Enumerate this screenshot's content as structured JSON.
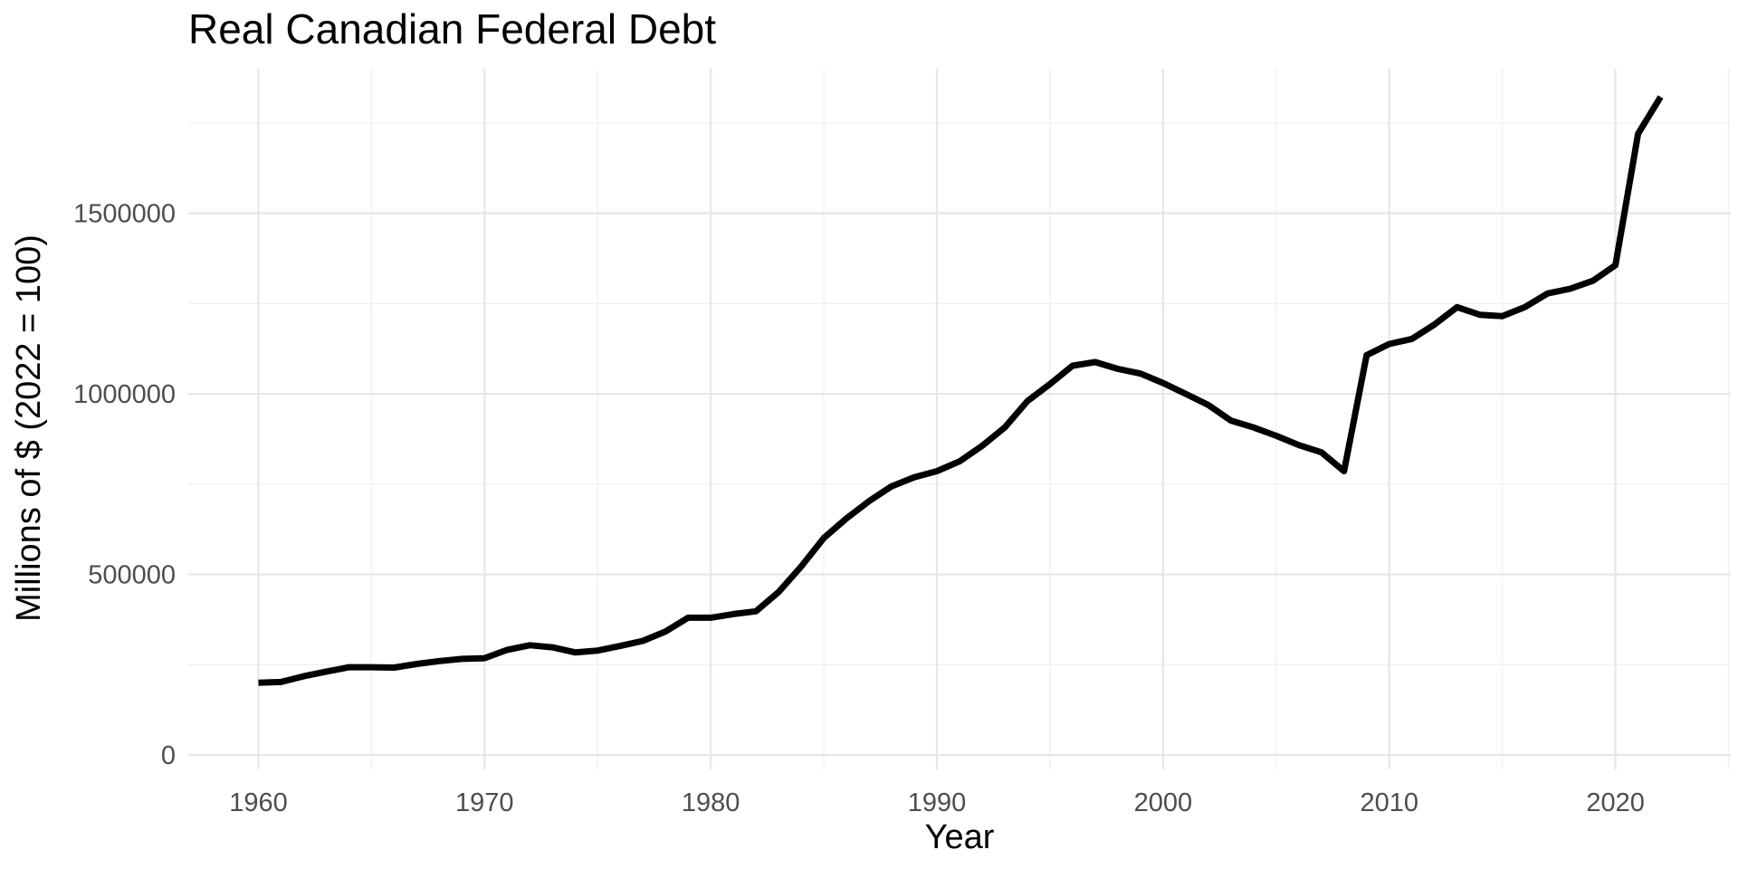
{
  "chart_data": {
    "type": "line",
    "title": "Real Canadian Federal Debt",
    "xlabel": "Year",
    "ylabel": "Millions of $ (2022 = 100)",
    "xlim": [
      1956.9,
      2025.1
    ],
    "ylim": [
      -40000,
      1900000
    ],
    "x_ticks": [
      1960,
      1970,
      1980,
      1990,
      2000,
      2010,
      2020
    ],
    "y_ticks": [
      0,
      500000,
      1000000,
      1500000
    ],
    "x_tick_labels": [
      "1960",
      "1970",
      "1980",
      "1990",
      "2000",
      "2010",
      "2020"
    ],
    "y_tick_labels": [
      "0",
      "500000",
      "1000000",
      "1500000"
    ],
    "grid": true,
    "legend": "none",
    "line_color": "#000000",
    "series": [
      {
        "x": [
          1960,
          1961,
          1962,
          1963,
          1964,
          1965,
          1966,
          1967,
          1968,
          1969,
          1970,
          1971,
          1972,
          1973,
          1974,
          1975,
          1976,
          1977,
          1978,
          1979,
          1980,
          1981,
          1982,
          1983,
          1984,
          1985,
          1986,
          1987,
          1988,
          1989,
          1990,
          1991,
          1992,
          1993,
          1994,
          1995,
          1996,
          1997,
          1998,
          1999,
          2000,
          2001,
          2002,
          2003,
          2004,
          2005,
          2006,
          2007,
          2008,
          2009,
          2010,
          2011,
          2012,
          2013,
          2014,
          2015,
          2016,
          2017,
          2018,
          2019,
          2020,
          2021,
          2022
        ],
        "values": [
          200000,
          202000,
          218000,
          231000,
          243000,
          243000,
          242000,
          252000,
          260000,
          266000,
          268000,
          291000,
          304000,
          298000,
          284000,
          289000,
          302000,
          316000,
          342000,
          380000,
          380000,
          390000,
          398000,
          451000,
          522000,
          601000,
          655000,
          703000,
          744000,
          769000,
          786000,
          813000,
          856000,
          907000,
          980000,
          1027000,
          1078000,
          1088000,
          1069000,
          1056000,
          1030000,
          1000000,
          969000,
          926000,
          907000,
          884000,
          858000,
          838000,
          786000,
          1107000,
          1138000,
          1152000,
          1192000,
          1240000,
          1219000,
          1215000,
          1240000,
          1278000,
          1291000,
          1313000,
          1356000,
          1720000,
          1822000
        ]
      }
    ]
  }
}
